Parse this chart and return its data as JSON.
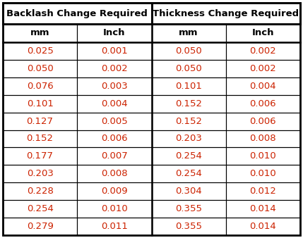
{
  "header1_labels": [
    "Backlash Change Required",
    "Thickness Change Required"
  ],
  "col_headers": [
    "mm",
    "Inch",
    "mm",
    "Inch"
  ],
  "rows": [
    [
      "0.025",
      "0.001",
      "0.050",
      "0.002"
    ],
    [
      "0.050",
      "0.002",
      "0.050",
      "0.002"
    ],
    [
      "0.076",
      "0.003",
      "0.101",
      "0.004"
    ],
    [
      "0.101",
      "0.004",
      "0.152",
      "0.006"
    ],
    [
      "0.127",
      "0.005",
      "0.152",
      "0.006"
    ],
    [
      "0.152",
      "0.006",
      "0.203",
      "0.008"
    ],
    [
      "0.177",
      "0.007",
      "0.254",
      "0.010"
    ],
    [
      "0.203",
      "0.008",
      "0.254",
      "0.010"
    ],
    [
      "0.228",
      "0.009",
      "0.304",
      "0.012"
    ],
    [
      "0.254",
      "0.010",
      "0.355",
      "0.014"
    ],
    [
      "0.279",
      "0.011",
      "0.355",
      "0.014"
    ]
  ],
  "background_color": "#ffffff",
  "border_color": "#000000",
  "text_color_header": "#000000",
  "text_color_data": "#cc2200",
  "header1_fontsize": 9.5,
  "header2_fontsize": 9.5,
  "data_fontsize": 9.5,
  "fig_width": 4.29,
  "fig_height": 3.38,
  "dpi": 100,
  "outer_lw": 2.0,
  "inner_lw": 0.8,
  "thick_mid_lw": 1.8
}
